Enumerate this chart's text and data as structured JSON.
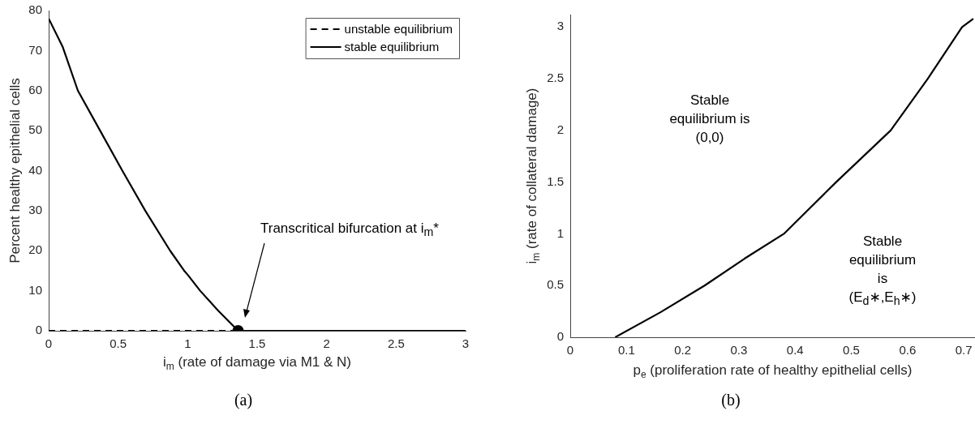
{
  "chart_data": [
    {
      "type": "line",
      "xlabel": "i$_{m}$ (rate of damage via M1 & N)",
      "ylabel": "Percent healthy epithelial cells",
      "xlim": [
        0,
        3
      ],
      "ylim": [
        0,
        80
      ],
      "xticks": [
        0,
        0.5,
        1,
        1.5,
        2,
        2.5,
        3
      ],
      "yticks": [
        0,
        10,
        20,
        30,
        40,
        50,
        60,
        70,
        80
      ],
      "grid": false,
      "legend": "top right",
      "series": [
        {
          "name": "unstable equilibrium",
          "color": "#000000",
          "line_style": "dashed",
          "marker": "none",
          "x": [
            0,
            1.363
          ],
          "values": [
            0,
            0
          ]
        },
        {
          "name": "stable equilibrium",
          "color": "#000000",
          "line_style": "solid",
          "marker": "none",
          "x": [
            0,
            0.1,
            0.21,
            0.37,
            0.53,
            0.695,
            0.874,
            0.975,
            1.0,
            1.09,
            1.22,
            1.363,
            3
          ],
          "values": [
            78,
            71,
            60,
            50,
            40,
            30,
            20,
            15,
            14,
            10,
            5,
            0,
            0
          ]
        },
        {
          "type": "scatter",
          "color": "#000000",
          "marker": "circle",
          "x": [
            1.363
          ],
          "values": [
            0
          ]
        }
      ],
      "annotations": [
        "Transcritical bifurcation at i$_{m}$*",
        "(a)"
      ]
    },
    {
      "type": "line",
      "xlabel": "p$_{e}$ (proliferation rate of healthy epithelial cells)",
      "ylabel": "i$_{m}$ (rate of collateral damage)",
      "xlim": [
        0,
        0.72
      ],
      "ylim": [
        0,
        3.12
      ],
      "xticks": [
        0,
        0.1,
        0.2,
        0.3,
        0.4,
        0.5,
        0.6,
        0.7
      ],
      "yticks": [
        0,
        0.5,
        1,
        1.5,
        2,
        2.5,
        3
      ],
      "grid": false,
      "legend": false,
      "marker": "none",
      "series": [
        {
          "color": "#000000",
          "line_style": "solid",
          "x": [
            0.08,
            0.16,
            0.239,
            0.31,
            0.38,
            0.473,
            0.57,
            0.636,
            0.697,
            0.717
          ],
          "values": [
            0,
            0.24,
            0.5,
            0.76,
            1.0,
            1.5,
            2.0,
            2.5,
            3.0,
            3.08
          ]
        }
      ],
      "annotations": [
        "Stable equilibrium is (0,0)",
        "Stable equilibrium is (E$_{d}$∗,E$_{h}$∗)",
        "(b)"
      ]
    }
  ]
}
